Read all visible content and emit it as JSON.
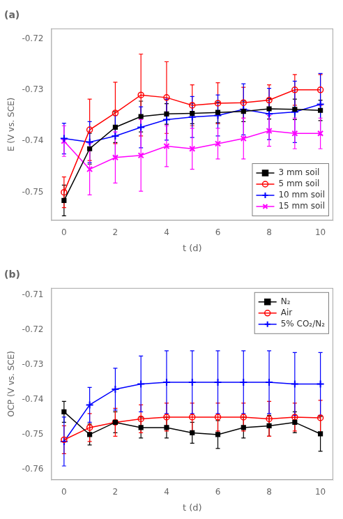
{
  "chart_data": [
    {
      "type": "line",
      "title": "(a)",
      "xlabel": "t (d)",
      "ylabel": "E (V vs. SCE)",
      "x": [
        0,
        1,
        2,
        3,
        4,
        5,
        6,
        7,
        8,
        9,
        10
      ],
      "xlim": [
        -0.5,
        10.5
      ],
      "xticks": [
        0,
        2,
        4,
        6,
        8,
        10
      ],
      "ylim": [
        -0.7555,
        -0.718
      ],
      "yticks": [
        -0.75,
        -0.74,
        -0.73,
        -0.72
      ],
      "grid": false,
      "legend": "lower right",
      "series": [
        {
          "name": "3 mm soil",
          "color": "#000000",
          "marker": "square",
          "line_style": "solid",
          "values": [
            -0.7516,
            -0.7415,
            -0.7373,
            -0.7352,
            -0.7347,
            -0.7346,
            -0.7344,
            -0.7342,
            -0.7337,
            -0.7338,
            -0.734
          ],
          "yerr": [
            0.003,
            0.003,
            0.003,
            0.003,
            0.002,
            0.002,
            0.002,
            0.002,
            0.002,
            0.002,
            0.002
          ]
        },
        {
          "name": "5 mm soil",
          "color": "#ff0000",
          "marker": "open_circle",
          "line_style": "solid",
          "values": [
            -0.75,
            -0.7378,
            -0.7345,
            -0.731,
            -0.7315,
            -0.733,
            -0.7326,
            -0.7325,
            -0.732,
            -0.73,
            -0.73
          ],
          "yerr": [
            0.003,
            0.006,
            0.006,
            0.008,
            0.007,
            0.004,
            0.004,
            0.003,
            0.003,
            0.003,
            0.003
          ]
        },
        {
          "name": "10 mm soil",
          "color": "#0000ff",
          "marker": "plus",
          "line_style": "solid",
          "values": [
            -0.7395,
            -0.7402,
            -0.739,
            -0.7373,
            -0.7358,
            -0.7353,
            -0.735,
            -0.7338,
            -0.7347,
            -0.7343,
            -0.7328
          ],
          "yerr": [
            0.003,
            0.004,
            0.004,
            0.004,
            0.004,
            0.004,
            0.004,
            0.005,
            0.005,
            0.006,
            0.006
          ]
        },
        {
          "name": "15 mm soil",
          "color": "#ff00ff",
          "marker": "x",
          "line_style": "solid",
          "values": [
            -0.74,
            -0.7455,
            -0.7432,
            -0.7428,
            -0.741,
            -0.7415,
            -0.7405,
            -0.7395,
            -0.738,
            -0.7385,
            -0.7385
          ],
          "yerr": [
            0.003,
            0.005,
            0.005,
            0.007,
            0.004,
            0.004,
            0.003,
            0.004,
            0.003,
            0.003,
            0.003
          ]
        }
      ]
    },
    {
      "type": "line",
      "title": "(b)",
      "xlabel": "t (d)",
      "ylabel": "OCP (V vs. SCE)",
      "x": [
        0,
        1,
        2,
        3,
        4,
        5,
        6,
        7,
        8,
        9,
        10
      ],
      "xlim": [
        -0.5,
        10.5
      ],
      "xticks": [
        0,
        2,
        4,
        6,
        8,
        10
      ],
      "ylim": [
        -0.763,
        -0.708
      ],
      "yticks": [
        -0.76,
        -0.75,
        -0.74,
        -0.73,
        -0.72,
        -0.71
      ],
      "grid": false,
      "legend": "upper right",
      "series": [
        {
          "name": "N₂",
          "color": "#000000",
          "marker": "square",
          "line_style": "solid",
          "values": [
            -0.7435,
            -0.75,
            -0.7465,
            -0.748,
            -0.748,
            -0.7495,
            -0.75,
            -0.748,
            -0.7475,
            -0.7465,
            -0.7498
          ],
          "yerr": [
            0.003,
            0.003,
            0.003,
            0.003,
            0.003,
            0.003,
            0.004,
            0.003,
            0.003,
            0.003,
            0.005
          ]
        },
        {
          "name": "Air",
          "color": "#ff0000",
          "marker": "open_circle",
          "line_style": "solid",
          "values": [
            -0.7515,
            -0.748,
            -0.7465,
            -0.7455,
            -0.745,
            -0.745,
            -0.745,
            -0.745,
            -0.7455,
            -0.745,
            -0.7452
          ],
          "yerr": [
            0.004,
            0.004,
            0.004,
            0.004,
            0.004,
            0.004,
            0.004,
            0.004,
            0.005,
            0.004,
            0.005
          ]
        },
        {
          "name": "5% CO₂/N₂",
          "color": "#0000ff",
          "marker": "plus",
          "line_style": "solid",
          "values": [
            -0.752,
            -0.7415,
            -0.737,
            -0.7355,
            -0.735,
            -0.735,
            -0.735,
            -0.735,
            -0.735,
            -0.7355,
            -0.7355
          ],
          "yerr": [
            0.007,
            0.005,
            0.006,
            0.008,
            0.009,
            0.009,
            0.009,
            0.009,
            0.009,
            0.009,
            0.009
          ]
        }
      ]
    }
  ]
}
